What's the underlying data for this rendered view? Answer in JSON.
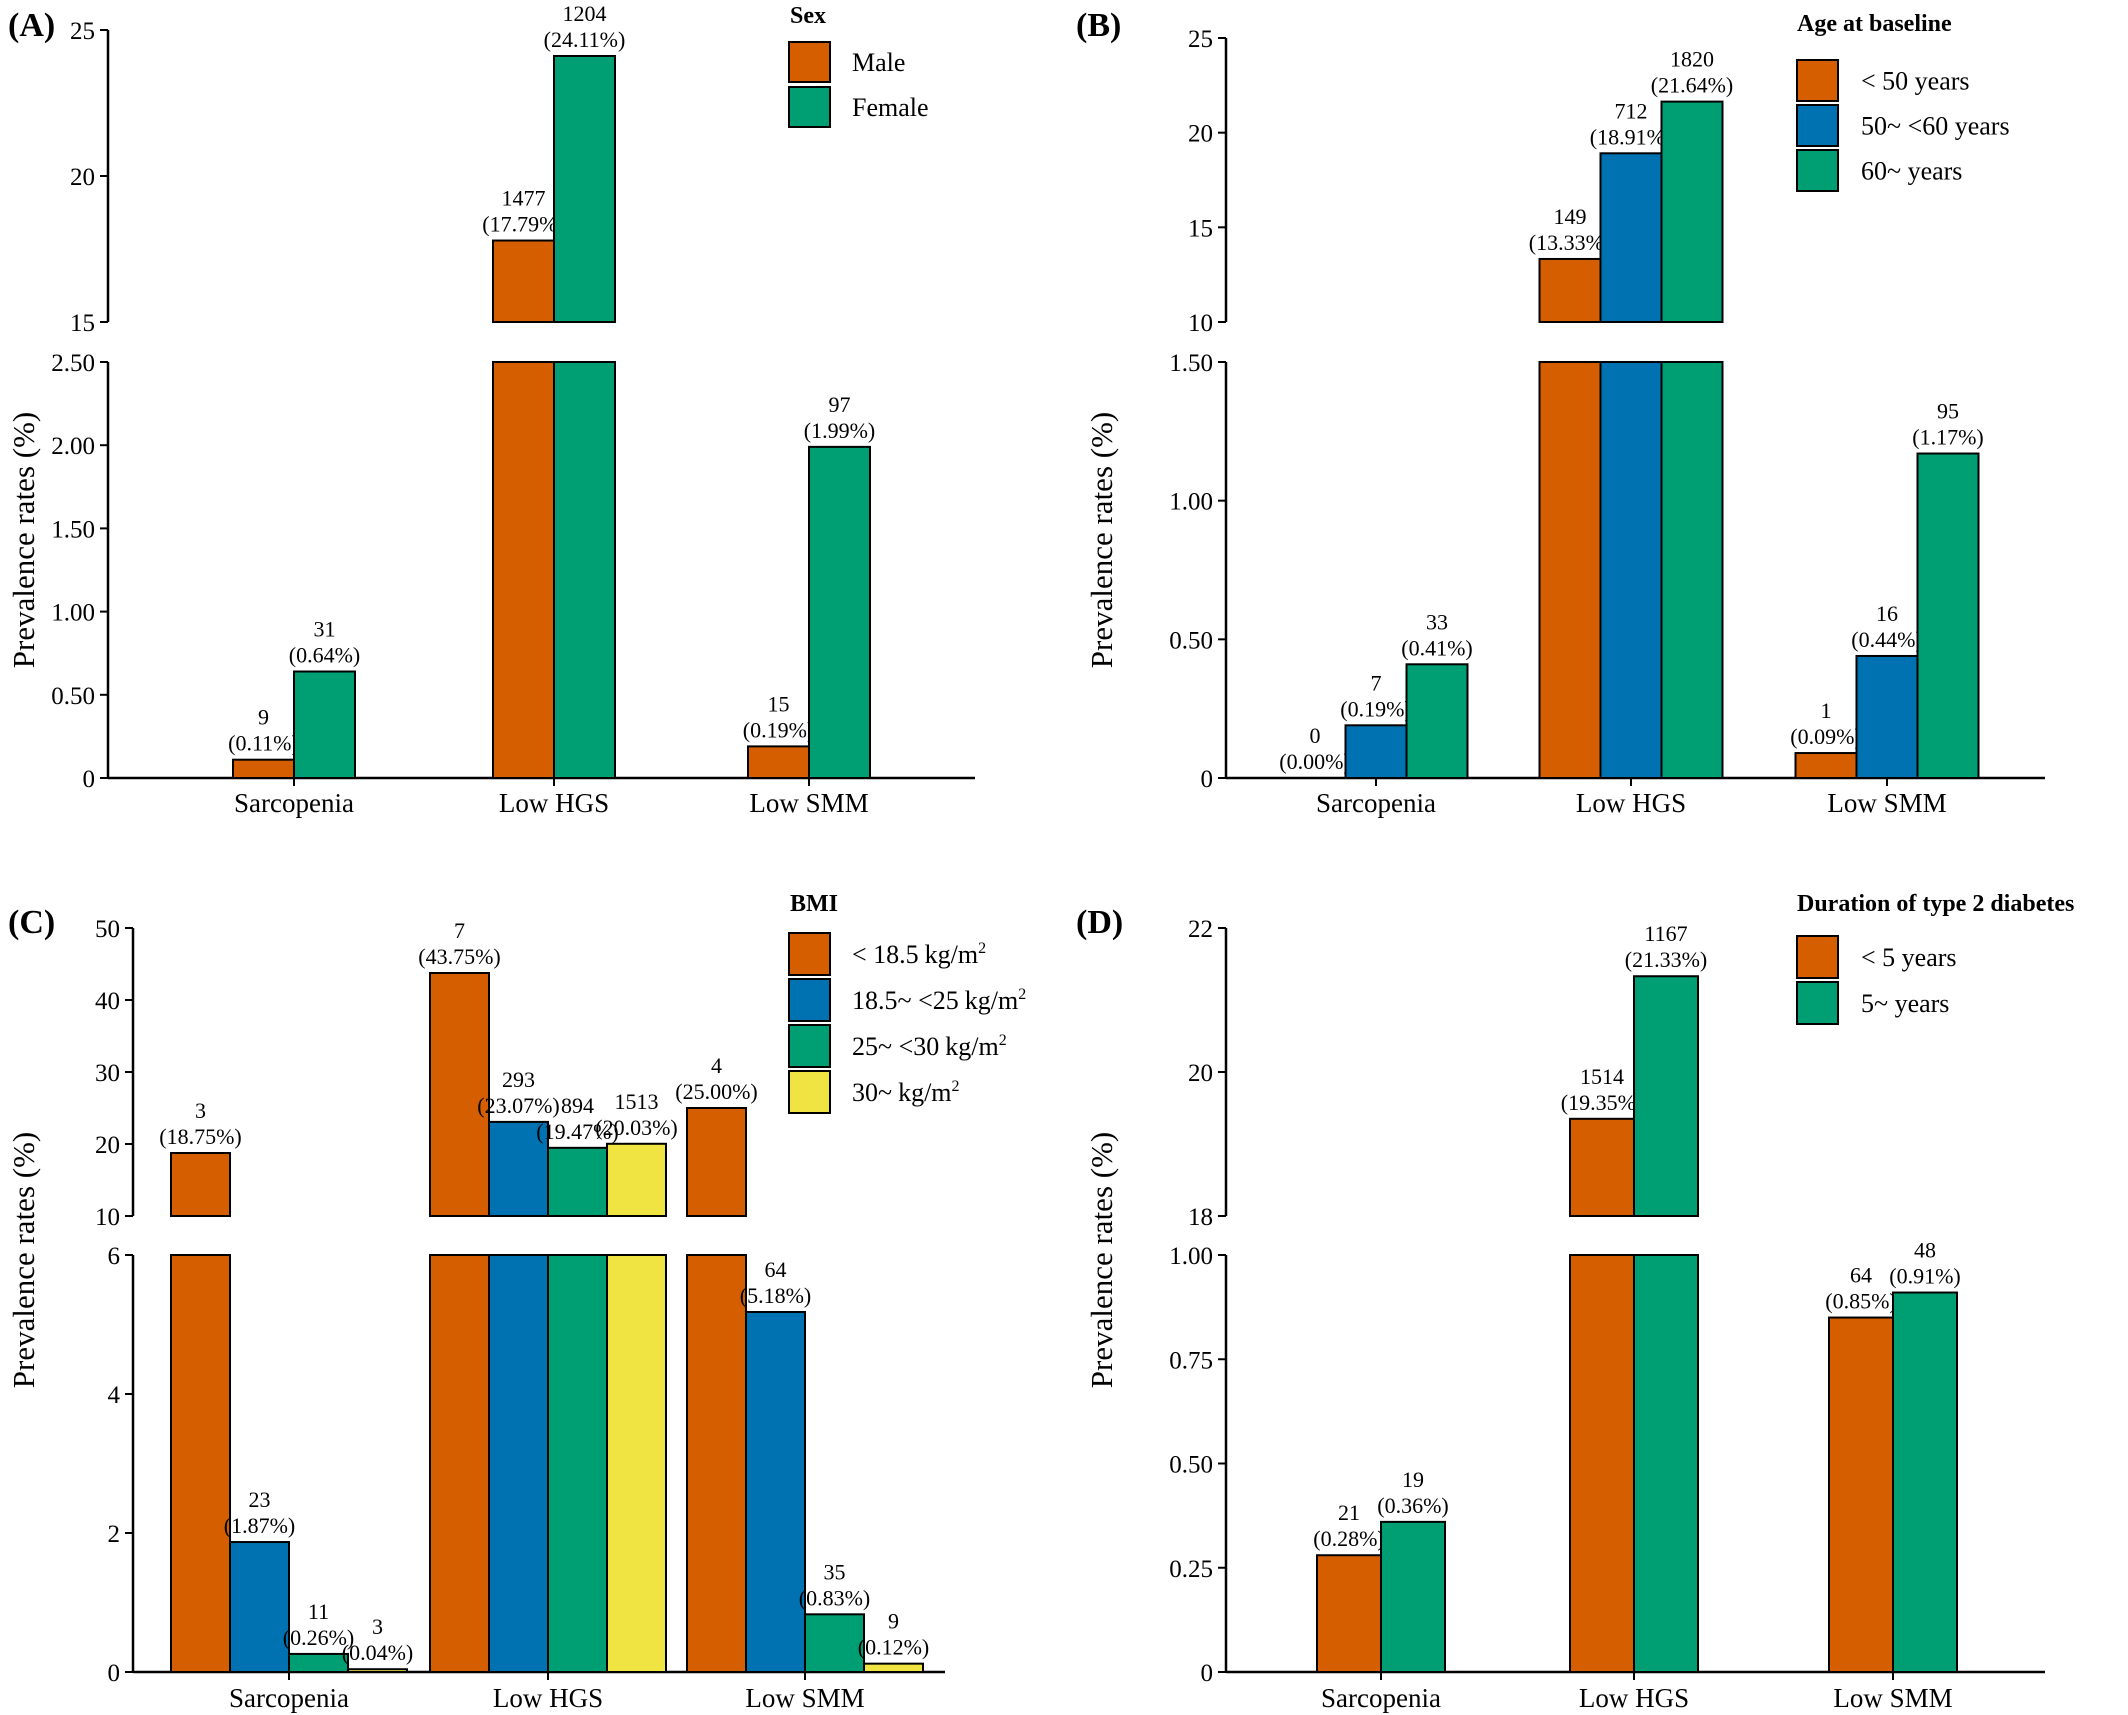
{
  "chart_data": [
    {
      "panel": "(A)",
      "type": "bar",
      "ylabel": "Prevalence rates (%)",
      "categories": [
        "Sarcopenia",
        "Low HGS",
        "Low SMM"
      ],
      "legend_title": "Sex",
      "legend_placement": "top-right",
      "axis_break": {
        "lower_ylim": [
          0,
          2.5
        ],
        "upper_ylim": [
          15,
          25
        ]
      },
      "lower_ticks": [
        "0",
        "0.50",
        "1.00",
        "1.50",
        "2.00",
        "2.50"
      ],
      "upper_ticks": [
        "15",
        "20",
        "25"
      ],
      "series": [
        {
          "name": "Male",
          "color": "#D55E00",
          "values": [
            0.11,
            17.79,
            0.19
          ],
          "counts": [
            "9",
            "1477",
            "15"
          ],
          "labels": [
            "(0.11%)",
            "(17.79%)",
            "(0.19%)"
          ]
        },
        {
          "name": "Female",
          "color": "#009E73",
          "values": [
            0.64,
            24.11,
            1.99
          ],
          "counts": [
            "31",
            "1204",
            "97"
          ],
          "labels": [
            "(0.64%)",
            "(24.11%)",
            "(1.99%)"
          ]
        }
      ]
    },
    {
      "panel": "(B)",
      "type": "bar",
      "ylabel": "Prevalence rates (%)",
      "categories": [
        "Sarcopenia",
        "Low HGS",
        "Low SMM"
      ],
      "legend_title": "Age at baseline",
      "legend_placement": "top-right",
      "axis_break": {
        "lower_ylim": [
          0,
          1.5
        ],
        "upper_ylim": [
          10,
          25
        ]
      },
      "lower_ticks": [
        "0",
        "0.50",
        "1.00",
        "1.50"
      ],
      "upper_ticks": [
        "10",
        "15",
        "20",
        "25"
      ],
      "series": [
        {
          "name": "< 50 years",
          "color": "#D55E00",
          "values": [
            0.0,
            13.33,
            0.09
          ],
          "counts": [
            "0",
            "149",
            "1"
          ],
          "labels": [
            "(0.00%)",
            "(13.33%)",
            "(0.09%)"
          ]
        },
        {
          "name": "50~ <60 years",
          "color": "#0072B2",
          "values": [
            0.19,
            18.91,
            0.44
          ],
          "counts": [
            "7",
            "712",
            "16"
          ],
          "labels": [
            "(0.19%)",
            "(18.91%)",
            "(0.44%)"
          ]
        },
        {
          "name": "60~ years",
          "color": "#009E73",
          "values": [
            0.41,
            21.64,
            1.17
          ],
          "counts": [
            "33",
            "1820",
            "95"
          ],
          "labels": [
            "(0.41%)",
            "(21.64%)",
            "(1.17%)"
          ]
        }
      ]
    },
    {
      "panel": "(C)",
      "type": "bar",
      "ylabel": "Prevalence rates (%)",
      "categories": [
        "Sarcopenia",
        "Low HGS",
        "Low SMM"
      ],
      "legend_title": "BMI",
      "legend_placement": "top-right",
      "axis_break": {
        "lower_ylim": [
          0,
          6
        ],
        "upper_ylim": [
          10,
          50
        ]
      },
      "lower_ticks": [
        "0",
        "2",
        "4",
        "6"
      ],
      "upper_ticks": [
        "10",
        "20",
        "30",
        "40",
        "50"
      ],
      "series": [
        {
          "name": "< 18.5",
          "unit": "kg/m",
          "sup": "2",
          "color": "#D55E00",
          "values": [
            18.75,
            43.75,
            25.0
          ],
          "counts": [
            "3",
            "7",
            "4"
          ],
          "labels": [
            "(18.75%)",
            "(43.75%)",
            "(25.00%)"
          ]
        },
        {
          "name": "18.5~ <25",
          "unit": "kg/m",
          "sup": "2",
          "color": "#0072B2",
          "values": [
            1.87,
            23.07,
            5.18
          ],
          "counts": [
            "23",
            "293",
            "64"
          ],
          "labels": [
            "(1.87%)",
            "(23.07%)",
            "(5.18%)"
          ]
        },
        {
          "name": "25~ <30",
          "unit": "kg/m",
          "sup": "2",
          "color": "#009E73",
          "values": [
            0.26,
            19.47,
            0.83
          ],
          "counts": [
            "11",
            "894",
            "35"
          ],
          "labels": [
            "(0.26%)",
            "(19.47%)",
            "(0.83%)"
          ]
        },
        {
          "name": "30~",
          "unit": "kg/m",
          "sup": "2",
          "color": "#F0E442",
          "values": [
            0.04,
            20.03,
            0.12
          ],
          "counts": [
            "3",
            "1513",
            "9"
          ],
          "labels": [
            "(0.04%)",
            "(20.03%)",
            "(0.12%)"
          ]
        }
      ]
    },
    {
      "panel": "(D)",
      "type": "bar",
      "ylabel": "Prevalence rates (%)",
      "categories": [
        "Sarcopenia",
        "Low HGS",
        "Low SMM"
      ],
      "legend_title": "Duration of type 2 diabetes",
      "legend_placement": "top-right",
      "axis_break": {
        "lower_ylim": [
          0,
          1.0
        ],
        "upper_ylim": [
          18,
          22
        ]
      },
      "lower_ticks": [
        "0",
        "0.25",
        "0.50",
        "0.75",
        "1.00"
      ],
      "upper_ticks": [
        "18",
        "20",
        "22"
      ],
      "series": [
        {
          "name": "< 5 years",
          "color": "#D55E00",
          "values": [
            0.28,
            19.35,
            0.85
          ],
          "counts": [
            "21",
            "1514",
            "64"
          ],
          "labels": [
            "(0.28%)",
            "(19.35%)",
            "(0.85%)"
          ]
        },
        {
          "name": "5~ years",
          "color": "#009E73",
          "values": [
            0.36,
            21.33,
            0.91
          ],
          "counts": [
            "19",
            "1167",
            "48"
          ],
          "labels": [
            "(0.36%)",
            "(21.33%)",
            "(0.91%)"
          ]
        }
      ]
    }
  ]
}
